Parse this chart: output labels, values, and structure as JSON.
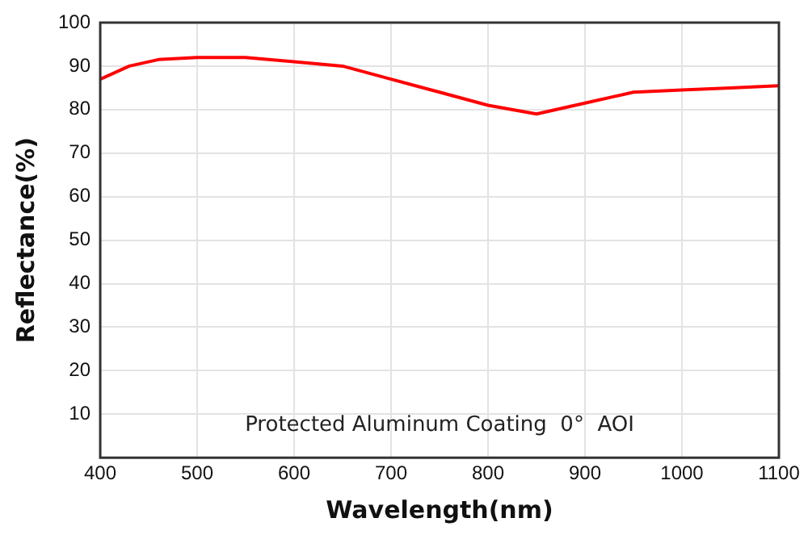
{
  "chart_data": {
    "type": "line",
    "xlabel": "Wavelength(nm)",
    "ylabel": "Reflectance(%)",
    "x": [
      400,
      430,
      460,
      500,
      550,
      600,
      650,
      700,
      750,
      800,
      850,
      900,
      950,
      1000,
      1050,
      1100
    ],
    "series": [
      {
        "color": "#ff0000",
        "values": [
          87,
          90,
          91.5,
          92,
          92,
          91,
          90,
          87,
          84,
          81,
          79,
          81.5,
          84,
          84.5,
          85,
          85.5
        ]
      }
    ],
    "xlim": [
      400,
      1100
    ],
    "xticks": [
      400,
      500,
      600,
      700,
      800,
      900,
      1000,
      1100
    ],
    "ylim": [
      0,
      100
    ],
    "yticks": [
      10,
      20,
      30,
      40,
      50,
      60,
      70,
      80,
      90,
      100
    ],
    "grid": true,
    "legend": false,
    "marker": "none",
    "line_style": "solid",
    "annotations": [
      "Protected Aluminum Coating  0°  AOI"
    ]
  }
}
